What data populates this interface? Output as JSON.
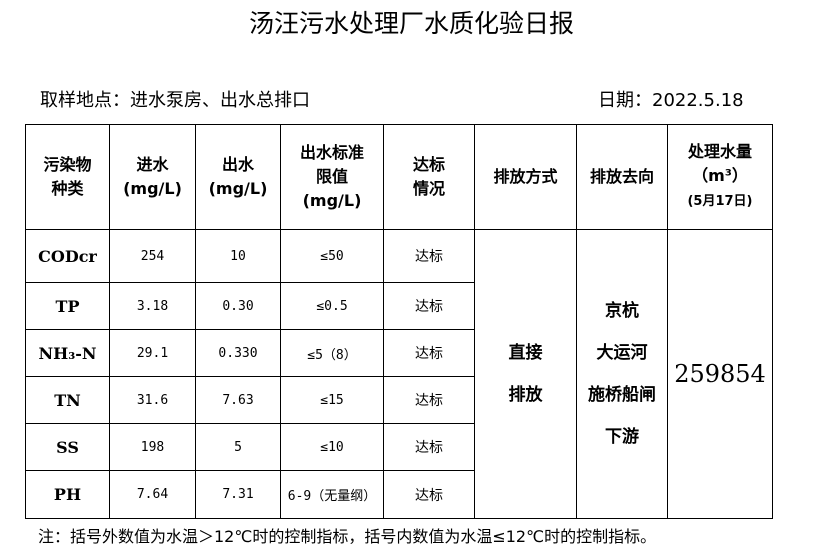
{
  "title": "汤汪污水处理厂水质化验日报",
  "location": "取样地点：进水泵房、出水总排口",
  "date": "日期：2022.5.18",
  "headers": {
    "c0a": "污染物",
    "c0b": "种类",
    "c1a": "进水",
    "c1b": "(mg/L)",
    "c2a": "出水",
    "c2b": "(mg/L)",
    "c3a": "出水标准",
    "c3b": "限值",
    "c3c": "(mg/L)",
    "c4a": "达标",
    "c4b": "情况",
    "c5": "排放方式",
    "c6": "排放去向",
    "c7a": "处理水量",
    "c7b": "（m³）",
    "c7c": "(5月17日)"
  },
  "rows": [
    {
      "name": "CODcr",
      "in": "254",
      "out": "10",
      "limit": "≤50",
      "status": "达标"
    },
    {
      "name": "TP",
      "in": "3.18",
      "out": "0.30",
      "limit": "≤0.5",
      "status": "达标"
    },
    {
      "name": "NH₃-N",
      "in": "29.1",
      "out": "0.330",
      "limit": "≤5（8）",
      "status": "达标"
    },
    {
      "name": "TN",
      "in": "31.6",
      "out": "7.63",
      "limit": "≤15",
      "status": "达标"
    },
    {
      "name": "SS",
      "in": "198",
      "out": "5",
      "limit": "≤10",
      "status": "达标"
    },
    {
      "name": "PH",
      "in": "7.64",
      "out": "7.31",
      "limit": "6-9（无量纲）",
      "status": "达标"
    }
  ],
  "discharge_method": [
    "直接",
    "排放"
  ],
  "discharge_dest": [
    "京杭",
    "大运河",
    "施桥船闸",
    "下游"
  ],
  "volume": "259854",
  "note": "注：括号外数值为水温＞12℃时的控制指标，括号内数值为水温≤12℃时的控制指标。"
}
